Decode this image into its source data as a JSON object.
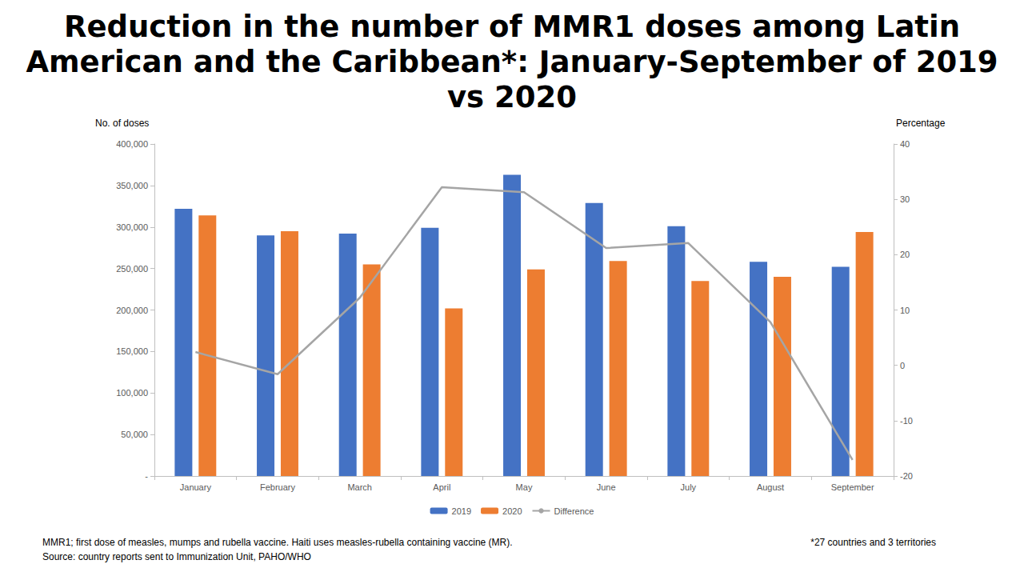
{
  "chart_data": {
    "type": "bar",
    "title": "Reduction in the number of MMR1 doses among Latin American and the Caribbean*: January-September of 2019 vs 2020",
    "y_label": "No. of doses",
    "y2_label": "Percentage",
    "categories": [
      "January",
      "February",
      "March",
      "April",
      "May",
      "June",
      "July",
      "August",
      "September"
    ],
    "series": [
      {
        "name": "2019",
        "type": "bar",
        "color": "#4472c4",
        "values": [
          322000,
          290000,
          292000,
          299000,
          363000,
          329000,
          301000,
          258000,
          252000
        ]
      },
      {
        "name": "2020",
        "type": "bar",
        "color": "#ed7d31",
        "values": [
          314000,
          295000,
          255000,
          202000,
          249000,
          259000,
          235000,
          240000,
          294000
        ]
      },
      {
        "name": "Difference",
        "type": "line",
        "color": "#a5a5a5",
        "marker": "none",
        "axis": "y2",
        "values": [
          2.4,
          -1.6,
          12.2,
          32.2,
          31.3,
          21.2,
          22.1,
          7.8,
          -17.1
        ]
      }
    ],
    "ylim": [
      0,
      400000
    ],
    "yticks": [
      {
        "value": 0,
        "label": "-"
      },
      {
        "value": 50000,
        "label": "50,000"
      },
      {
        "value": 100000,
        "label": "100,000"
      },
      {
        "value": 150000,
        "label": "150,000"
      },
      {
        "value": 200000,
        "label": "200,000"
      },
      {
        "value": 250000,
        "label": "250,000"
      },
      {
        "value": 300000,
        "label": "300,000"
      },
      {
        "value": 350000,
        "label": "350,000"
      },
      {
        "value": 400000,
        "label": "400,000"
      }
    ],
    "y2lim": [
      -20,
      40
    ],
    "y2ticks": [
      -20,
      -10,
      0,
      10,
      20,
      30,
      40
    ],
    "grid": false,
    "legend": "bottom",
    "annotations": [
      "MMR1; first dose of measles, mumps and rubella vaccine. Haiti uses measles-rubella containing vaccine (MR).",
      "Source: country reports sent to Immunization Unit, PAHO/WHO",
      "*27 countries and 3 territories"
    ]
  }
}
